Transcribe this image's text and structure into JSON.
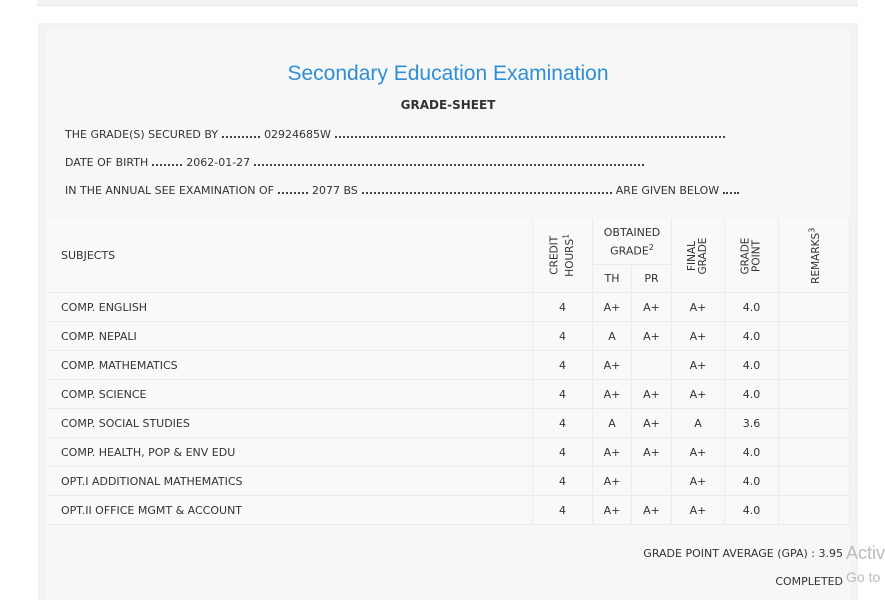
{
  "header": {
    "title": "Secondary Education Examination",
    "subtitle": "GRADE-SHEET"
  },
  "info": [
    {
      "label": "THE GRADE(S) SECURED BY",
      "value": "02924685W"
    },
    {
      "label": "DATE OF BIRTH",
      "value": "2062-01-27"
    },
    {
      "label": "IN THE ANNUAL SEE EXAMINATION OF",
      "value": "2077 BS",
      "tail": "ARE GIVEN BELOW"
    }
  ],
  "table": {
    "headers": {
      "subjects": "SUBJECTS",
      "credit": {
        "text": "CREDIT HOURS",
        "note": "1"
      },
      "obtained": {
        "text": "OBTAINED GRADE",
        "note": "2"
      },
      "th": "TH",
      "pr": "PR",
      "final": "FINAL GRADE",
      "gp": "GRADE POINT",
      "remarks": {
        "text": "REMARKS",
        "note": "3"
      }
    },
    "rows": [
      [
        "COMP. ENGLISH",
        "4",
        "A+",
        "A+",
        "A+",
        "4.0"
      ],
      [
        "COMP. NEPALI",
        "4",
        "A",
        "A+",
        "A+",
        "4.0"
      ],
      [
        "COMP. MATHEMATICS",
        "4",
        "A+",
        null,
        "A+",
        "4.0"
      ],
      [
        "COMP. SCIENCE",
        "4",
        "A+",
        "A+",
        "A+",
        "4.0"
      ],
      [
        "COMP. SOCIAL STUDIES",
        "4",
        "A",
        "A+",
        "A",
        "3.6"
      ],
      [
        "COMP. HEALTH, POP & ENV EDU",
        "4",
        "A+",
        "A+",
        "A+",
        "4.0"
      ],
      [
        "OPT.I ADDITIONAL MATHEMATICS",
        "4",
        "A+",
        null,
        "A+",
        "4.0"
      ],
      [
        "OPT.II OFFICE MGMT & ACCOUNT",
        "4",
        "A+",
        "A+",
        "A+",
        "4.0"
      ]
    ]
  },
  "footer": {
    "gpa_label": "GRADE POINT AVERAGE (GPA) :",
    "gpa": "3.95",
    "status": "COMPLETED"
  },
  "watermark": [
    "Activ",
    "Go to"
  ]
}
